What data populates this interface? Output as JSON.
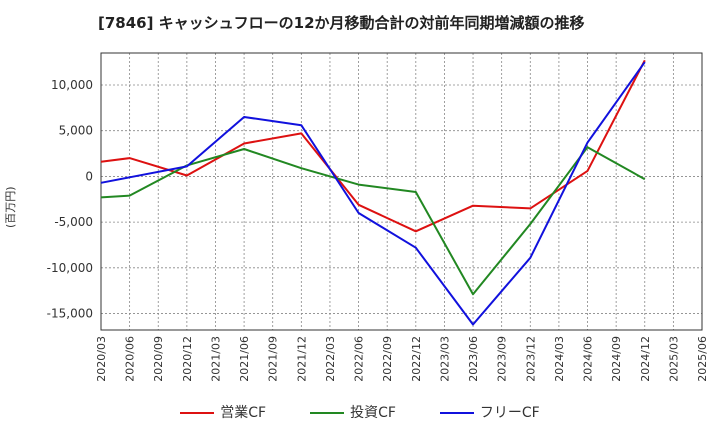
{
  "title": "[7846]  キャッシュフローの12か月移動合計の対前年同期増減額の推移",
  "chart_data": {
    "type": "line",
    "ylabel": "(百万円)",
    "xlabel": "",
    "x": [
      "2020/03",
      "2020/06",
      "2020/09",
      "2020/12",
      "2021/03",
      "2021/06",
      "2021/09",
      "2021/12",
      "2022/03",
      "2022/06",
      "2022/09",
      "2022/12",
      "2023/03",
      "2023/06",
      "2023/09",
      "2023/12",
      "2024/03",
      "2024/06",
      "2024/09",
      "2024/12",
      "2025/03",
      "2025/06"
    ],
    "ylim": [
      -16800,
      13500
    ],
    "yticks": [
      10000,
      5000,
      0,
      -5000,
      -10000,
      -15000
    ],
    "ytick_labels": [
      "10,000",
      "5,000",
      "0",
      "-5,000",
      "-10,000",
      "-15,000"
    ],
    "grid": true,
    "legend_position": "bottom",
    "series": [
      {
        "name": "営業CF",
        "color": "#dd1111",
        "values": [
          1600,
          2000,
          null,
          100,
          null,
          3600,
          null,
          4700,
          null,
          -3100,
          null,
          -6000,
          null,
          -3200,
          null,
          -3500,
          null,
          600,
          null,
          12700,
          null,
          null
        ]
      },
      {
        "name": "投資CF",
        "color": "#228822",
        "values": [
          -2300,
          -2100,
          null,
          1200,
          null,
          3000,
          null,
          900,
          null,
          -900,
          null,
          -1700,
          null,
          -12900,
          null,
          -5200,
          null,
          3200,
          null,
          -300,
          null,
          null
        ]
      },
      {
        "name": "フリーCF",
        "color": "#1111dd",
        "values": [
          -700,
          -100,
          null,
          1100,
          null,
          6500,
          null,
          5600,
          null,
          -4000,
          null,
          -7800,
          null,
          -16200,
          null,
          -8900,
          null,
          3700,
          null,
          12500,
          null,
          null
        ]
      }
    ]
  }
}
